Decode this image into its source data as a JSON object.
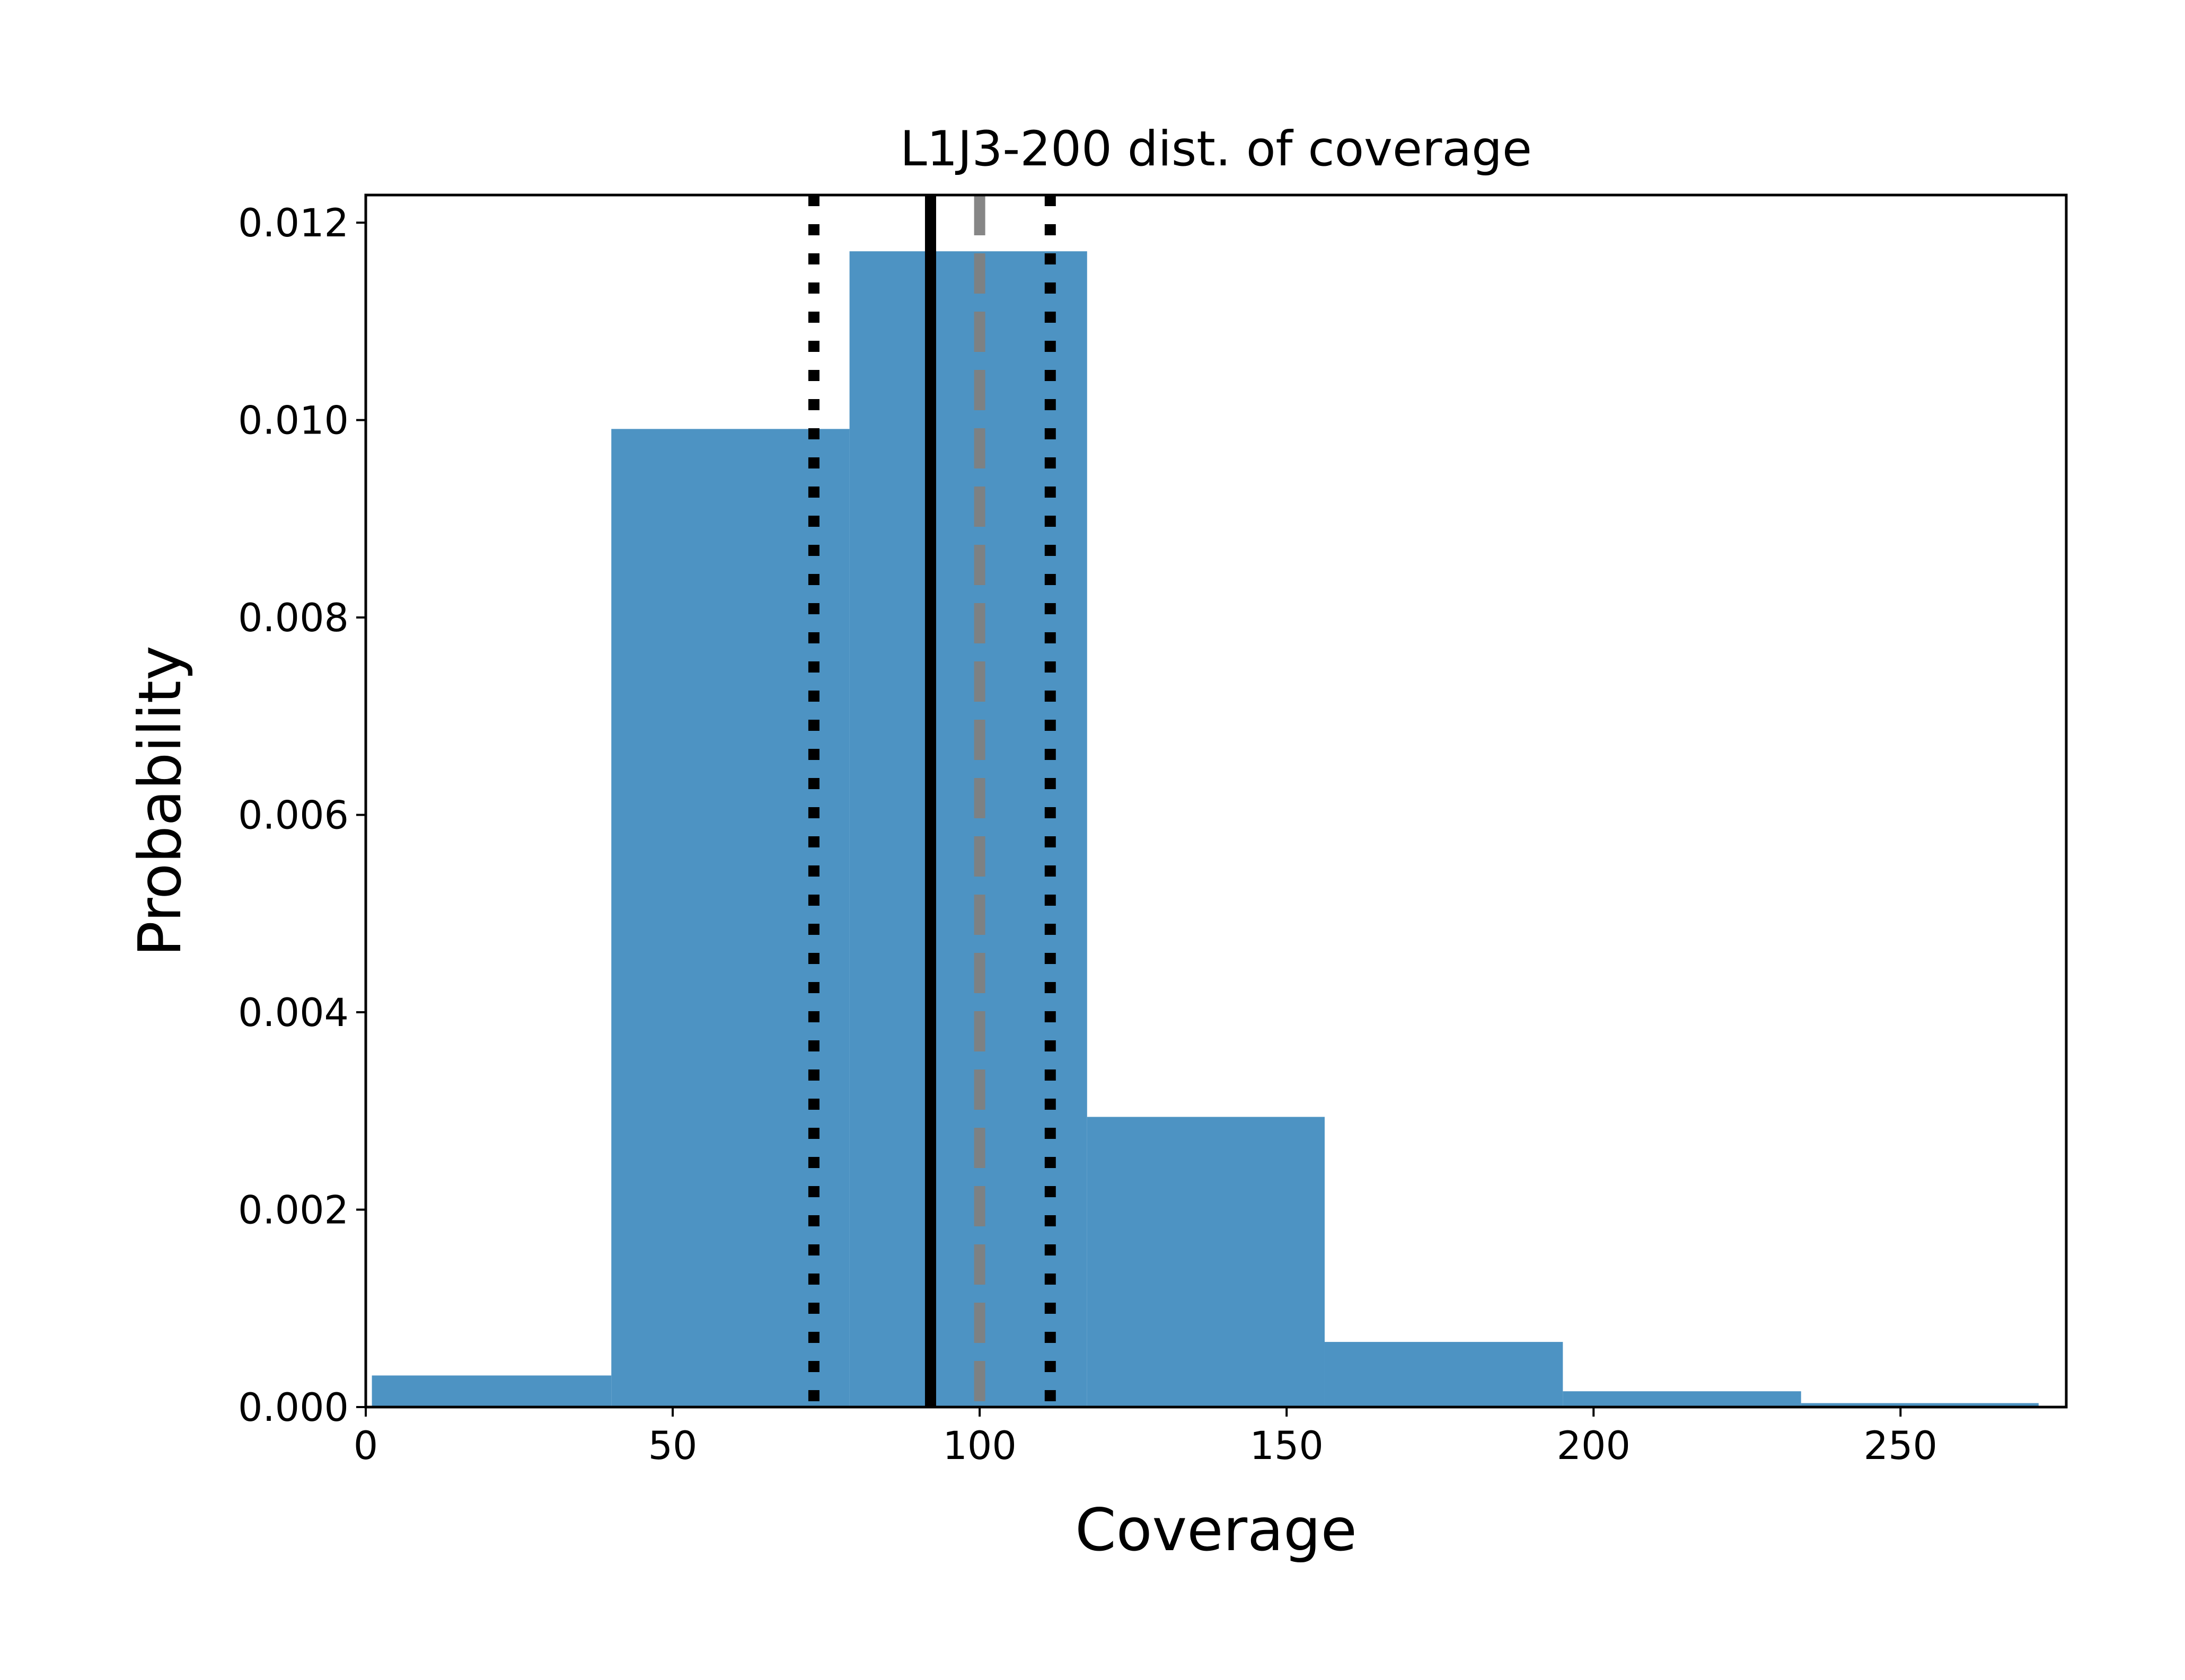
{
  "chart_data": {
    "type": "bar",
    "title": "L1J3-200 dist. of coverage",
    "xlabel": "Coverage",
    "ylabel": "Probability",
    "xlim": [
      0,
      277
    ],
    "ylim": [
      0,
      0.01228
    ],
    "xticks": [
      0,
      50,
      100,
      150,
      200,
      250
    ],
    "xtick_labels": [
      "0",
      "50",
      "100",
      "150",
      "200",
      "250"
    ],
    "yticks": [
      0,
      0.002,
      0.004,
      0.006,
      0.008,
      0.01,
      0.012
    ],
    "ytick_labels": [
      "0.000",
      "0.002",
      "0.004",
      "0.006",
      "0.008",
      "0.010",
      "0.012"
    ],
    "grid": false,
    "bar_color": "#4d93c3",
    "bins": [
      {
        "x0": 1,
        "x1": 40,
        "value": 0.00032
      },
      {
        "x0": 40,
        "x1": 78.8,
        "value": 0.00991
      },
      {
        "x0": 78.8,
        "x1": 117.5,
        "value": 0.01171
      },
      {
        "x0": 117.5,
        "x1": 156.2,
        "value": 0.00294
      },
      {
        "x0": 156.2,
        "x1": 195,
        "value": 0.00066
      },
      {
        "x0": 195,
        "x1": 233.8,
        "value": 0.00016
      },
      {
        "x0": 233.8,
        "x1": 272.5,
        "value": 4e-05
      }
    ],
    "reference_lines": [
      {
        "x": 73,
        "style": "dotted",
        "color": "#000000"
      },
      {
        "x": 92,
        "style": "solid",
        "color": "#000000"
      },
      {
        "x": 100,
        "style": "dashed",
        "color": "#808080"
      },
      {
        "x": 111.5,
        "style": "dotted",
        "color": "#000000"
      }
    ]
  }
}
